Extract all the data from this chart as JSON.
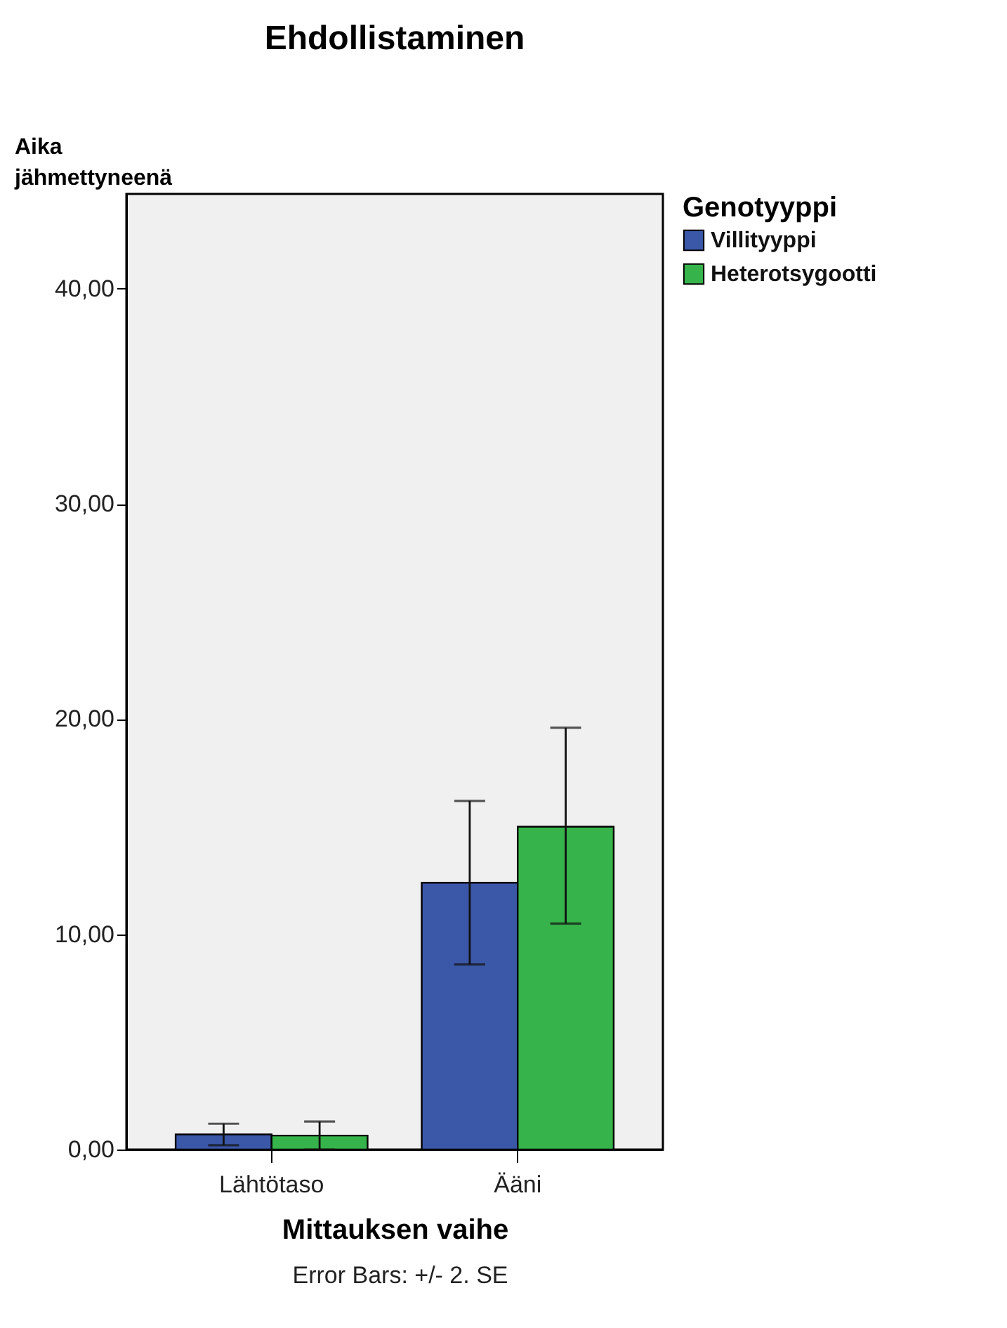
{
  "chart_data": {
    "type": "bar",
    "title": "Ehdollistaminen",
    "xlabel": "Mittauksen vaihe",
    "ylabel": "Aika jähmettyneenä",
    "legend_title": "Genotyyppi",
    "categories": [
      "Lähtötaso",
      "Ääni"
    ],
    "series": [
      {
        "name": "Villityyppi",
        "color": "#3b57a8",
        "values": [
          0.7,
          12.4
        ],
        "errors": [
          [
            0.2,
            1.2
          ],
          [
            8.6,
            16.2
          ]
        ]
      },
      {
        "name": "Heterotsygootti",
        "color": "#36b34a",
        "values": [
          0.65,
          15.0
        ],
        "errors": [
          [
            0.0,
            1.3
          ],
          [
            10.5,
            19.6
          ]
        ]
      }
    ],
    "ylim": [
      0,
      44.4
    ],
    "yticks": [
      {
        "value": 0,
        "label": "0,00"
      },
      {
        "value": 10,
        "label": "10,00"
      },
      {
        "value": 20,
        "label": "20,00"
      },
      {
        "value": 30,
        "label": "30,00"
      },
      {
        "value": 40,
        "label": "40,00"
      }
    ],
    "grid": false,
    "legend": "top right",
    "annotations": [
      "Error Bars: +/- 2. SE"
    ]
  }
}
